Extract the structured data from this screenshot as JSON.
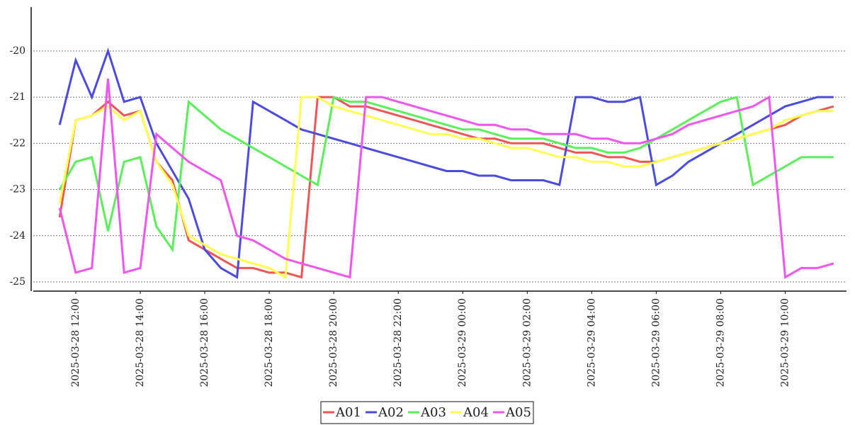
{
  "chart_data": {
    "type": "line",
    "x": [
      "2025-03-28 11:30",
      "2025-03-28 12:00",
      "2025-03-28 12:30",
      "2025-03-28 13:00",
      "2025-03-28 13:30",
      "2025-03-28 14:00",
      "2025-03-28 14:30",
      "2025-03-28 15:00",
      "2025-03-28 15:30",
      "2025-03-28 16:00",
      "2025-03-28 16:30",
      "2025-03-28 17:00",
      "2025-03-28 17:30",
      "2025-03-28 18:00",
      "2025-03-28 18:30",
      "2025-03-28 19:00",
      "2025-03-28 19:30",
      "2025-03-28 20:00",
      "2025-03-28 20:30",
      "2025-03-28 21:00",
      "2025-03-28 21:30",
      "2025-03-28 22:00",
      "2025-03-28 22:30",
      "2025-03-28 23:00",
      "2025-03-28 23:30",
      "2025-03-29 00:00",
      "2025-03-29 00:30",
      "2025-03-29 01:00",
      "2025-03-29 01:30",
      "2025-03-29 02:00",
      "2025-03-29 02:30",
      "2025-03-29 03:00",
      "2025-03-29 03:30",
      "2025-03-29 04:00",
      "2025-03-29 04:30",
      "2025-03-29 05:00",
      "2025-03-29 05:30",
      "2025-03-29 06:00",
      "2025-03-29 06:30",
      "2025-03-29 07:00",
      "2025-03-29 07:30",
      "2025-03-29 08:00",
      "2025-03-29 08:30",
      "2025-03-29 09:00",
      "2025-03-29 09:30",
      "2025-03-29 10:00",
      "2025-03-29 10:30",
      "2025-03-29 11:00",
      "2025-03-29 11:30"
    ],
    "series": [
      {
        "name": "A01",
        "color": "#f05555",
        "values": [
          -23.6,
          -21.5,
          -21.4,
          -21.1,
          -21.4,
          -21.3,
          -22.4,
          -22.8,
          -24.1,
          -24.3,
          -24.5,
          -24.7,
          -24.7,
          -24.8,
          -24.8,
          -24.9,
          -21.0,
          -21.0,
          -21.2,
          -21.2,
          -21.3,
          -21.4,
          -21.5,
          -21.6,
          -21.7,
          -21.8,
          -21.9,
          -21.9,
          -22.0,
          -22.0,
          -22.0,
          -22.1,
          -22.2,
          -22.2,
          -22.3,
          -22.3,
          -22.4,
          -22.4,
          -22.3,
          -22.2,
          -22.1,
          -22.0,
          -21.9,
          -21.8,
          -21.7,
          -21.6,
          -21.4,
          -21.3,
          -21.2
        ]
      },
      {
        "name": "A02",
        "color": "#4b4be0",
        "values": [
          -21.6,
          -20.2,
          -21.0,
          -20.0,
          -21.1,
          -21.0,
          -22.0,
          -22.6,
          -23.2,
          -24.3,
          -24.7,
          -24.9,
          -21.1,
          -21.3,
          -21.5,
          -21.7,
          -21.8,
          -21.9,
          -22.0,
          -22.1,
          -22.2,
          -22.3,
          -22.4,
          -22.5,
          -22.6,
          -22.6,
          -22.7,
          -22.7,
          -22.8,
          -22.8,
          -22.8,
          -22.9,
          -21.0,
          -21.0,
          -21.1,
          -21.1,
          -21.0,
          -22.9,
          -22.7,
          -22.4,
          -22.2,
          -22.0,
          -21.8,
          -21.6,
          -21.4,
          -21.2,
          -21.1,
          -21.0,
          -21.0
        ]
      },
      {
        "name": "A03",
        "color": "#5af05a",
        "values": [
          -23.0,
          -22.4,
          -22.3,
          -23.9,
          -22.4,
          -22.3,
          -23.8,
          -24.3,
          -21.1,
          -21.4,
          -21.7,
          -21.9,
          -22.1,
          -22.3,
          -22.5,
          -22.7,
          -22.9,
          -21.0,
          -21.1,
          -21.1,
          -21.2,
          -21.3,
          -21.4,
          -21.5,
          -21.6,
          -21.7,
          -21.7,
          -21.8,
          -21.9,
          -21.9,
          -21.9,
          -22.0,
          -22.1,
          -22.1,
          -22.2,
          -22.2,
          -22.1,
          -21.9,
          -21.7,
          -21.5,
          -21.3,
          -21.1,
          -21.0,
          -22.9,
          -22.7,
          -22.5,
          -22.3,
          -22.3,
          -22.3
        ]
      },
      {
        "name": "A04",
        "color": "#ffff50",
        "values": [
          -23.3,
          -21.5,
          -21.4,
          -21.2,
          -21.5,
          -21.3,
          -22.4,
          -22.9,
          -24.0,
          -24.2,
          -24.4,
          -24.5,
          -24.6,
          -24.7,
          -24.9,
          -21.0,
          -21.0,
          -21.2,
          -21.3,
          -21.4,
          -21.5,
          -21.6,
          -21.7,
          -21.8,
          -21.8,
          -21.9,
          -21.9,
          -22.0,
          -22.1,
          -22.1,
          -22.2,
          -22.3,
          -22.3,
          -22.4,
          -22.4,
          -22.5,
          -22.5,
          -22.4,
          -22.3,
          -22.2,
          -22.1,
          -22.0,
          -21.9,
          -21.8,
          -21.7,
          -21.5,
          -21.4,
          -21.3,
          -21.3
        ]
      },
      {
        "name": "A05",
        "color": "#f055f0",
        "values": [
          -23.4,
          -24.8,
          -24.7,
          -20.6,
          -24.8,
          -24.7,
          -21.8,
          -22.1,
          -22.4,
          -22.6,
          -22.8,
          -24.0,
          -24.1,
          -24.3,
          -24.5,
          -24.6,
          -24.7,
          -24.8,
          -24.9,
          -21.0,
          -21.0,
          -21.1,
          -21.2,
          -21.3,
          -21.4,
          -21.5,
          -21.6,
          -21.6,
          -21.7,
          -21.7,
          -21.8,
          -21.8,
          -21.8,
          -21.9,
          -21.9,
          -22.0,
          -22.0,
          -21.9,
          -21.8,
          -21.6,
          -21.5,
          -21.4,
          -21.3,
          -21.2,
          -21.0,
          -24.9,
          -24.7,
          -24.7,
          -24.6
        ]
      }
    ],
    "xlim": [
      "2025-03-28 10:41",
      "2025-03-29 11:54"
    ],
    "xticks": [
      "2025-03-28 12:00",
      "2025-03-28 14:00",
      "2025-03-28 16:00",
      "2025-03-28 18:00",
      "2025-03-28 20:00",
      "2025-03-28 22:00",
      "2025-03-29 00:00",
      "2025-03-29 02:00",
      "2025-03-29 04:00",
      "2025-03-29 06:00",
      "2025-03-29 08:00",
      "2025-03-29 10:00"
    ],
    "ylim": [
      -25.2,
      -19.05
    ],
    "yticks": [
      -25,
      -24,
      -23,
      -22,
      -21,
      -20
    ],
    "grid": true,
    "legend": "bottom"
  }
}
